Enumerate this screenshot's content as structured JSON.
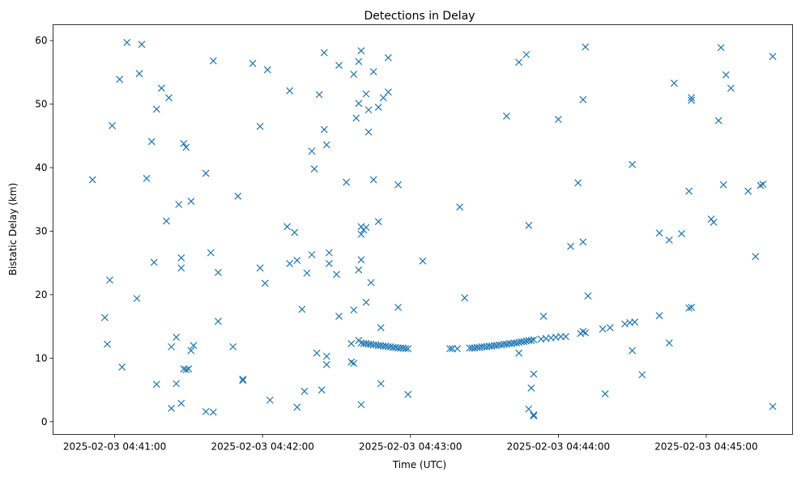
{
  "chart_data": {
    "type": "scatter",
    "title": "Detections in Delay",
    "xlabel": "Time (UTC)",
    "ylabel": "Bistatic Delay (km)",
    "x_ticks": [
      "2025-02-03 04:41:00",
      "2025-02-03 04:42:00",
      "2025-02-03 04:43:00",
      "2025-02-03 04:44:00",
      "2025-02-03 04:45:00"
    ],
    "y_ticks": [
      "0",
      "10",
      "20",
      "30",
      "40",
      "50",
      "60"
    ],
    "xlim": [
      "2025-02-03 04:40:35",
      "2025-02-03 04:45:35"
    ],
    "ylim": [
      -2,
      62.5
    ],
    "grid": false,
    "marker": "x",
    "color": "#1f77b4",
    "series": [
      {
        "points": [
          [
            "04:40:51",
            38.1
          ],
          [
            "04:40:56",
            16.4
          ],
          [
            "04:40:57",
            12.2
          ],
          [
            "04:40:58",
            22.3
          ],
          [
            "04:40:59",
            46.6
          ],
          [
            "04:41:02",
            53.9
          ],
          [
            "04:41:03",
            8.6
          ],
          [
            "04:41:05",
            59.7
          ],
          [
            "04:41:09",
            19.4
          ],
          [
            "04:41:10",
            54.8
          ],
          [
            "04:41:11",
            59.4
          ],
          [
            "04:41:13",
            38.3
          ],
          [
            "04:41:15",
            44.1
          ],
          [
            "04:41:16",
            25.1
          ],
          [
            "04:41:17",
            49.2
          ],
          [
            "04:41:17",
            5.9
          ],
          [
            "04:41:19",
            52.5
          ],
          [
            "04:41:21",
            31.6
          ],
          [
            "04:41:22",
            51.0
          ],
          [
            "04:41:23",
            2.1
          ],
          [
            "04:41:23",
            11.8
          ],
          [
            "04:41:25",
            13.3
          ],
          [
            "04:41:25",
            6.0
          ],
          [
            "04:41:26",
            34.2
          ],
          [
            "04:41:27",
            2.9
          ],
          [
            "04:41:27",
            24.2
          ],
          [
            "04:41:27",
            25.8
          ],
          [
            "04:41:28",
            8.3
          ],
          [
            "04:41:28",
            43.8
          ],
          [
            "04:41:29",
            43.2
          ],
          [
            "04:41:29",
            8.2
          ],
          [
            "04:41:30",
            8.3
          ],
          [
            "04:41:31",
            11.2
          ],
          [
            "04:41:31",
            34.7
          ],
          [
            "04:41:32",
            12.0
          ],
          [
            "04:41:37",
            1.6
          ],
          [
            "04:41:37",
            39.1
          ],
          [
            "04:41:39",
            26.6
          ],
          [
            "04:41:40",
            1.5
          ],
          [
            "04:41:40",
            56.8
          ],
          [
            "04:41:42",
            15.8
          ],
          [
            "04:41:42",
            23.5
          ],
          [
            "04:41:48",
            11.8
          ],
          [
            "04:41:50",
            35.5
          ],
          [
            "04:41:52",
            6.7
          ],
          [
            "04:41:52",
            6.5
          ],
          [
            "04:41:56",
            56.4
          ],
          [
            "04:41:59",
            24.2
          ],
          [
            "04:41:59",
            46.5
          ],
          [
            "04:42:01",
            21.8
          ],
          [
            "04:42:03",
            3.4
          ],
          [
            "04:42:02",
            55.4
          ],
          [
            "04:42:10",
            30.7
          ],
          [
            "04:42:11",
            52.1
          ],
          [
            "04:42:11",
            24.9
          ],
          [
            "04:42:13",
            29.8
          ],
          [
            "04:42:14",
            2.3
          ],
          [
            "04:42:14",
            25.4
          ],
          [
            "04:42:16",
            17.7
          ],
          [
            "04:42:17",
            4.8
          ],
          [
            "04:42:18",
            23.4
          ],
          [
            "04:42:20",
            26.3
          ],
          [
            "04:42:20",
            42.6
          ],
          [
            "04:42:21",
            39.8
          ],
          [
            "04:42:22",
            10.8
          ],
          [
            "04:42:23",
            51.5
          ],
          [
            "04:42:24",
            5.0
          ],
          [
            "04:42:25",
            58.1
          ],
          [
            "04:42:25",
            46.0
          ],
          [
            "04:42:26",
            43.6
          ],
          [
            "04:42:26",
            9.0
          ],
          [
            "04:42:26",
            10.3
          ],
          [
            "04:42:27",
            24.9
          ],
          [
            "04:42:27",
            26.6
          ],
          [
            "04:42:30",
            23.2
          ],
          [
            "04:42:31",
            16.6
          ],
          [
            "04:42:31",
            56.1
          ],
          [
            "04:42:34",
            37.7
          ],
          [
            "04:42:36",
            12.3
          ],
          [
            "04:42:36",
            9.4
          ],
          [
            "04:42:37",
            17.6
          ],
          [
            "04:42:37",
            54.7
          ],
          [
            "04:42:37",
            9.2
          ],
          [
            "04:42:38",
            47.8
          ],
          [
            "04:42:39",
            56.7
          ],
          [
            "04:42:39",
            50.1
          ],
          [
            "04:42:39",
            23.9
          ],
          [
            "04:42:39",
            12.8
          ],
          [
            "04:42:40",
            58.4
          ],
          [
            "04:42:40",
            25.5
          ],
          [
            "04:42:40",
            30.7
          ],
          [
            "04:42:40",
            29.5
          ],
          [
            "04:42:40",
            2.7
          ],
          [
            "04:42:41",
            30.2
          ],
          [
            "04:42:42",
            51.6
          ],
          [
            "04:42:42",
            30.6
          ],
          [
            "04:42:42",
            18.8
          ],
          [
            "04:42:43",
            45.6
          ],
          [
            "04:42:43",
            49.1
          ],
          [
            "04:42:44",
            21.9
          ],
          [
            "04:42:45",
            55.1
          ],
          [
            "04:42:45",
            38.1
          ],
          [
            "04:42:47",
            49.5
          ],
          [
            "04:42:47",
            31.5
          ],
          [
            "04:42:48",
            14.8
          ],
          [
            "04:42:48",
            6.0
          ],
          [
            "04:42:49",
            51.0
          ],
          [
            "04:42:51",
            57.3
          ],
          [
            "04:42:51",
            51.9
          ],
          [
            "04:42:55",
            37.3
          ],
          [
            "04:42:55",
            18.0
          ],
          [
            "04:42:59",
            4.3
          ],
          [
            "04:43:05",
            25.3
          ],
          [
            "04:43:20",
            33.8
          ],
          [
            "04:43:22",
            19.5
          ],
          [
            "04:43:39",
            48.1
          ],
          [
            "04:43:44",
            56.6
          ],
          [
            "04:43:44",
            10.8
          ],
          [
            "04:43:47",
            57.8
          ],
          [
            "04:43:48",
            30.9
          ],
          [
            "04:43:48",
            2.0
          ],
          [
            "04:43:49",
            5.3
          ],
          [
            "04:43:50",
            7.5
          ],
          [
            "04:43:50",
            1.1
          ],
          [
            "04:43:50",
            0.9
          ],
          [
            "04:43:54",
            16.6
          ],
          [
            "04:44:00",
            47.6
          ],
          [
            "04:44:05",
            27.6
          ],
          [
            "04:44:08",
            37.6
          ],
          [
            "04:44:10",
            50.7
          ],
          [
            "04:44:10",
            28.3
          ],
          [
            "04:44:10",
            14.2
          ],
          [
            "04:44:11",
            59.0
          ],
          [
            "04:44:12",
            19.8
          ],
          [
            "04:44:19",
            4.4
          ],
          [
            "04:44:30",
            40.5
          ],
          [
            "04:44:30",
            11.2
          ],
          [
            "04:44:34",
            7.4
          ],
          [
            "04:44:41",
            16.7
          ],
          [
            "04:44:41",
            29.7
          ],
          [
            "04:44:45",
            12.4
          ],
          [
            "04:44:45",
            28.6
          ],
          [
            "04:44:47",
            53.3
          ],
          [
            "04:44:50",
            29.6
          ],
          [
            "04:44:53",
            36.3
          ],
          [
            "04:44:53",
            17.9
          ],
          [
            "04:44:54",
            18.0
          ],
          [
            "04:44:54",
            50.6
          ],
          [
            "04:44:54",
            51.0
          ],
          [
            "04:45:02",
            31.9
          ],
          [
            "04:45:03",
            31.4
          ],
          [
            "04:45:05",
            47.4
          ],
          [
            "04:45:06",
            58.9
          ],
          [
            "04:45:07",
            37.3
          ],
          [
            "04:45:08",
            54.6
          ],
          [
            "04:45:10",
            52.5
          ],
          [
            "04:45:17",
            36.3
          ],
          [
            "04:45:20",
            26.0
          ],
          [
            "04:45:22",
            37.2
          ],
          [
            "04:45:23",
            37.4
          ],
          [
            "04:45:27",
            2.4
          ],
          [
            "04:45:27",
            57.5
          ],
          [
            "04:42:40",
            12.4
          ],
          [
            "04:42:41",
            12.3
          ],
          [
            "04:42:42",
            12.3
          ],
          [
            "04:42:43",
            12.2
          ],
          [
            "04:42:44",
            12.2
          ],
          [
            "04:42:45",
            12.1
          ],
          [
            "04:42:46",
            12.1
          ],
          [
            "04:42:47",
            12.0
          ],
          [
            "04:42:48",
            12.0
          ],
          [
            "04:42:49",
            11.9
          ],
          [
            "04:42:50",
            11.9
          ],
          [
            "04:42:51",
            11.8
          ],
          [
            "04:42:52",
            11.8
          ],
          [
            "04:42:53",
            11.7
          ],
          [
            "04:42:54",
            11.7
          ],
          [
            "04:42:55",
            11.6
          ],
          [
            "04:42:56",
            11.6
          ],
          [
            "04:42:57",
            11.6
          ],
          [
            "04:42:58",
            11.5
          ],
          [
            "04:42:59",
            11.5
          ],
          [
            "04:43:16",
            11.5
          ],
          [
            "04:43:17",
            11.5
          ],
          [
            "04:43:19",
            11.5
          ],
          [
            "04:43:24",
            11.6
          ],
          [
            "04:43:25",
            11.6
          ],
          [
            "04:43:26",
            11.6
          ],
          [
            "04:43:27",
            11.7
          ],
          [
            "04:43:28",
            11.7
          ],
          [
            "04:43:29",
            11.8
          ],
          [
            "04:43:30",
            11.8
          ],
          [
            "04:43:31",
            11.8
          ],
          [
            "04:43:32",
            11.9
          ],
          [
            "04:43:33",
            11.9
          ],
          [
            "04:43:34",
            12.0
          ],
          [
            "04:43:35",
            12.0
          ],
          [
            "04:43:36",
            12.1
          ],
          [
            "04:43:37",
            12.1
          ],
          [
            "04:43:38",
            12.2
          ],
          [
            "04:43:39",
            12.2
          ],
          [
            "04:43:40",
            12.3
          ],
          [
            "04:43:41",
            12.3
          ],
          [
            "04:43:42",
            12.4
          ],
          [
            "04:43:43",
            12.4
          ],
          [
            "04:43:44",
            12.5
          ],
          [
            "04:43:45",
            12.6
          ],
          [
            "04:43:46",
            12.6
          ],
          [
            "04:43:47",
            12.7
          ],
          [
            "04:43:48",
            12.8
          ],
          [
            "04:43:49",
            12.8
          ],
          [
            "04:43:50",
            12.9
          ],
          [
            "04:43:53",
            13.0
          ],
          [
            "04:43:55",
            13.1
          ],
          [
            "04:43:57",
            13.2
          ],
          [
            "04:43:59",
            13.3
          ],
          [
            "04:44:01",
            13.4
          ],
          [
            "04:44:03",
            13.4
          ],
          [
            "04:44:09",
            13.9
          ],
          [
            "04:44:11",
            14.0
          ],
          [
            "04:44:18",
            14.6
          ],
          [
            "04:44:21",
            14.8
          ],
          [
            "04:44:27",
            15.4
          ],
          [
            "04:44:29",
            15.6
          ],
          [
            "04:44:31",
            15.7
          ]
        ]
      }
    ]
  }
}
